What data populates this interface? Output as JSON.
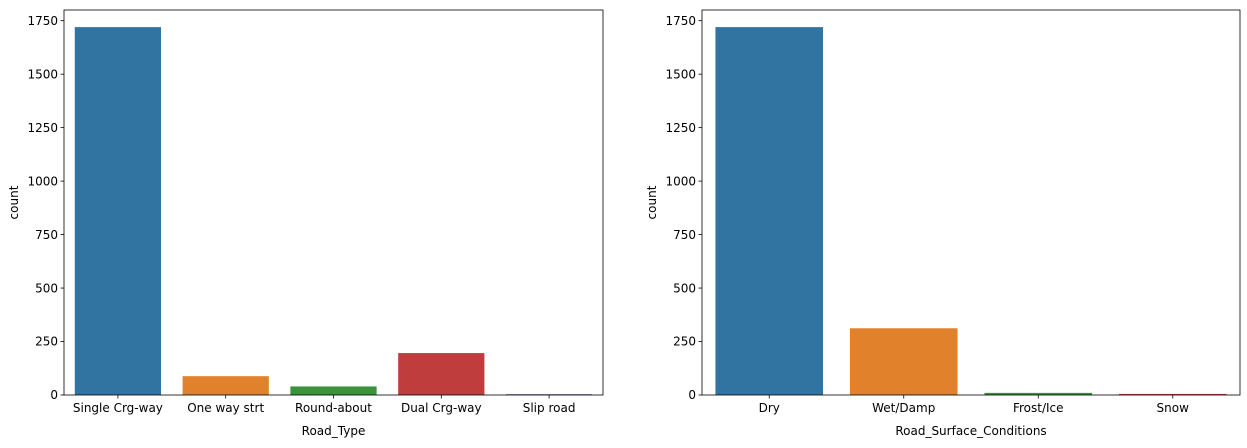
{
  "chart_data": [
    {
      "type": "bar",
      "xlabel": "Road_Type",
      "ylabel": "count",
      "categories": [
        "Single Crg-way",
        "One way strt",
        "Round-about",
        "Dual Crg-way",
        "Slip road"
      ],
      "values": [
        1720,
        88,
        40,
        196,
        4
      ],
      "colors": [
        "#3274a1",
        "#e1812c",
        "#3a923a",
        "#c03d3e",
        "#9372b2"
      ],
      "ylim": [
        0,
        1800
      ],
      "yticks": [
        0,
        250,
        500,
        750,
        1000,
        1250,
        1500,
        1750
      ],
      "grid": false
    },
    {
      "type": "bar",
      "xlabel": "Road_Surface_Conditions",
      "ylabel": "count",
      "categories": [
        "Dry",
        "Wet/Damp",
        "Frost/Ice",
        "Snow"
      ],
      "values": [
        1720,
        312,
        10,
        5
      ],
      "colors": [
        "#3274a1",
        "#e1812c",
        "#3a923a",
        "#c03d3e"
      ],
      "ylim": [
        0,
        1800
      ],
      "yticks": [
        0,
        250,
        500,
        750,
        1000,
        1250,
        1500,
        1750
      ],
      "grid": false
    }
  ]
}
